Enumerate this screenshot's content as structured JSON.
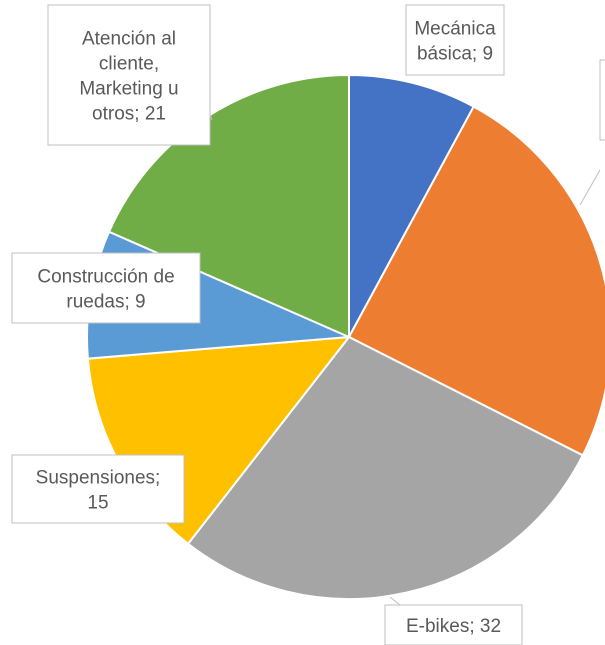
{
  "chart_data": {
    "type": "pie",
    "categories": [
      "Mecánica básica",
      null,
      "E-bikes",
      "Suspensiones",
      "Construcción de ruedas",
      "Atención al cliente, Marketing u otros"
    ],
    "values": [
      9,
      28,
      32,
      15,
      9,
      21
    ],
    "value_labels": [
      "Mecánica básica; 9",
      null,
      "E-bikes; 32",
      "Suspensiones; 15",
      "Construcción de ruedas; 9",
      "Atención al cliente, Marketing u otros; 21"
    ],
    "colors": [
      "#4472c4",
      "#ed7d31",
      "#a5a5a5",
      "#ffc000",
      "#5b9bd5",
      "#70ad47"
    ]
  }
}
